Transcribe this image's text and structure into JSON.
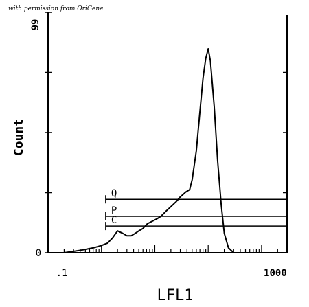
{
  "credit": "with permission from OriGene",
  "chart_data": {
    "type": "histogram",
    "xlabel": "LFL1",
    "ylabel": "Count",
    "x_scale": "log",
    "x_tick_labels": [
      ".1",
      "1000"
    ],
    "y_tick_labels": [
      "0",
      "99"
    ],
    "xlim": [
      0.1,
      3000
    ],
    "ylim": [
      0,
      99
    ],
    "gate_labels": [
      "Q",
      "P",
      "C"
    ],
    "gates": [
      {
        "name": "Q",
        "x_start": 1.2,
        "x_end": 3000,
        "y": 22
      },
      {
        "name": "P",
        "x_start": 1.2,
        "x_end": 3000,
        "y": 15
      },
      {
        "name": "C",
        "x_start": 1.2,
        "x_end": 3000,
        "y": 11
      }
    ],
    "histogram": [
      [
        0.1,
        0
      ],
      [
        0.2,
        0
      ],
      [
        0.4,
        1
      ],
      [
        0.7,
        2
      ],
      [
        1.0,
        3
      ],
      [
        1.3,
        4
      ],
      [
        1.6,
        6
      ],
      [
        2.0,
        9
      ],
      [
        2.5,
        8
      ],
      [
        3.0,
        7
      ],
      [
        3.6,
        7
      ],
      [
        4.3,
        8
      ],
      [
        5.0,
        9
      ],
      [
        6.0,
        10
      ],
      [
        7.3,
        12
      ],
      [
        9.0,
        13
      ],
      [
        11,
        14
      ],
      [
        13,
        15
      ],
      [
        16,
        17
      ],
      [
        20,
        19
      ],
      [
        25,
        21
      ],
      [
        30,
        23
      ],
      [
        38,
        25
      ],
      [
        45,
        26
      ],
      [
        50,
        30
      ],
      [
        60,
        42
      ],
      [
        70,
        58
      ],
      [
        80,
        72
      ],
      [
        90,
        80
      ],
      [
        100,
        84
      ],
      [
        110,
        79
      ],
      [
        130,
        60
      ],
      [
        150,
        38
      ],
      [
        175,
        20
      ],
      [
        200,
        8
      ],
      [
        240,
        2
      ],
      [
        300,
        0
      ]
    ]
  }
}
